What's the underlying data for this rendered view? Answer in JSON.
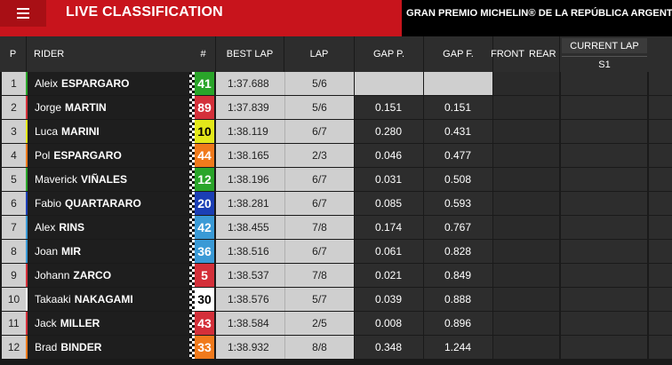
{
  "topbar": {
    "title": "LIVE CLASSIFICATION",
    "event": "GRAN PREMIO MICHELIN® DE LA REPÚBLICA ARGENTINA"
  },
  "columns": {
    "pos": "P",
    "rider": "RIDER",
    "num": "#",
    "best": "BEST LAP",
    "lap": "LAP",
    "gap_p": "GAP P.",
    "gap_f": "GAP F.",
    "front": "FRONT",
    "rear": "REAR",
    "current_lap": "CURRENT LAP",
    "s1": "S1"
  },
  "riders": [
    {
      "pos": "1",
      "first": "Aleix",
      "last": "ESPARGARO",
      "num": "41",
      "num_color": "#2aa52a",
      "stripe": "#2aa52a",
      "best": "1:37.688",
      "lap": "5/6",
      "gap_p": "",
      "gap_f": ""
    },
    {
      "pos": "2",
      "first": "Jorge",
      "last": "MARTIN",
      "num": "89",
      "num_color": "#d4303a",
      "stripe": "#d4303a",
      "best": "1:37.839",
      "lap": "5/6",
      "gap_p": "0.151",
      "gap_f": "0.151"
    },
    {
      "pos": "3",
      "first": "Luca",
      "last": "MARINI",
      "num": "10",
      "num_color": "#e3e81a",
      "num_text": "#000",
      "stripe": "#e3e81a",
      "best": "1:38.119",
      "lap": "6/7",
      "gap_p": "0.280",
      "gap_f": "0.431"
    },
    {
      "pos": "4",
      "first": "Pol",
      "last": "ESPARGARO",
      "num": "44",
      "num_color": "#f07a1c",
      "stripe": "#f07a1c",
      "best": "1:38.165",
      "lap": "2/3",
      "gap_p": "0.046",
      "gap_f": "0.477"
    },
    {
      "pos": "5",
      "first": "Maverick",
      "last": "VIÑALES",
      "num": "12",
      "num_color": "#2aa52a",
      "stripe": "#2aa52a",
      "best": "1:38.196",
      "lap": "6/7",
      "gap_p": "0.031",
      "gap_f": "0.508"
    },
    {
      "pos": "6",
      "first": "Fabio",
      "last": "QUARTARARO",
      "num": "20",
      "num_color": "#1b3fb5",
      "stripe": "#1b3fb5",
      "best": "1:38.281",
      "lap": "6/7",
      "gap_p": "0.085",
      "gap_f": "0.593"
    },
    {
      "pos": "7",
      "first": "Alex",
      "last": "RINS",
      "num": "42",
      "num_color": "#3a9ad6",
      "stripe": "#3a9ad6",
      "best": "1:38.455",
      "lap": "7/8",
      "gap_p": "0.174",
      "gap_f": "0.767"
    },
    {
      "pos": "8",
      "first": "Joan",
      "last": "MIR",
      "num": "36",
      "num_color": "#3a9ad6",
      "stripe": "#3a9ad6",
      "best": "1:38.516",
      "lap": "6/7",
      "gap_p": "0.061",
      "gap_f": "0.828"
    },
    {
      "pos": "9",
      "first": "Johann",
      "last": "ZARCO",
      "num": "5",
      "num_color": "#d4303a",
      "stripe": "#d4303a",
      "best": "1:38.537",
      "lap": "7/8",
      "gap_p": "0.021",
      "gap_f": "0.849"
    },
    {
      "pos": "10",
      "first": "Takaaki",
      "last": "NAKAGAMI",
      "num": "30",
      "num_color": "#ffffff",
      "num_text": "#000",
      "stripe": "#ffffff",
      "best": "1:38.576",
      "lap": "5/7",
      "gap_p": "0.039",
      "gap_f": "0.888"
    },
    {
      "pos": "11",
      "first": "Jack",
      "last": "MILLER",
      "num": "43",
      "num_color": "#d4303a",
      "stripe": "#d4303a",
      "best": "1:38.584",
      "lap": "2/5",
      "gap_p": "0.008",
      "gap_f": "0.896"
    },
    {
      "pos": "12",
      "first": "Brad",
      "last": "BINDER",
      "num": "33",
      "num_color": "#f07a1c",
      "stripe": "#f07a1c",
      "best": "1:38.932",
      "lap": "8/8",
      "gap_p": "0.348",
      "gap_f": "1.244"
    }
  ]
}
